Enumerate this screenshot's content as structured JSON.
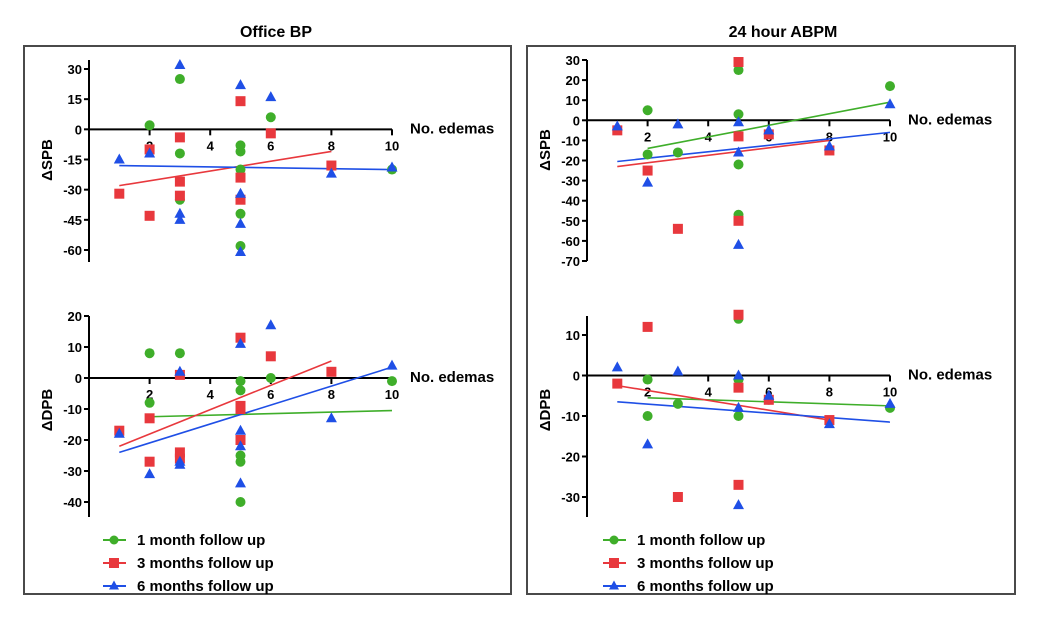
{
  "colors": {
    "green": "#3fae2a",
    "red": "#e8383d",
    "blue": "#1f4fe6",
    "axis": "#000000",
    "frame": "#4a4a4a"
  },
  "legend": [
    {
      "label": "1 month follow up",
      "series": "green",
      "marker": "circle"
    },
    {
      "label": "3 months follow up",
      "series": "red",
      "marker": "square"
    },
    {
      "label": "6 months follow up",
      "series": "blue",
      "marker": "triangle"
    }
  ],
  "panels": [
    {
      "title": "Office BP"
    },
    {
      "title": "24 hour ABPM"
    }
  ],
  "chart_data": [
    {
      "type": "scatter",
      "panel": "Office BP",
      "title": "Office BP",
      "xlabel": "No. edemas",
      "ylabel": "ΔSPB",
      "xlim": [
        0,
        10
      ],
      "ylim": [
        -65,
        35
      ],
      "xticks": [
        2,
        4,
        6,
        8,
        10
      ],
      "yticks": [
        30,
        15,
        0,
        -15,
        -30,
        -45,
        -60
      ],
      "grid": false,
      "legend_position": "none",
      "series": [
        {
          "name": "1 month follow up",
          "color_key": "green",
          "marker": "circle",
          "points": [
            [
              2,
              2
            ],
            [
              3,
              25
            ],
            [
              3,
              -12
            ],
            [
              3,
              -35
            ],
            [
              5,
              -8
            ],
            [
              5,
              -11
            ],
            [
              5,
              -20
            ],
            [
              5,
              -42
            ],
            [
              5,
              -58
            ],
            [
              6,
              6
            ],
            [
              10,
              -20
            ]
          ],
          "fit": null
        },
        {
          "name": "3 months follow up",
          "color_key": "red",
          "marker": "square",
          "points": [
            [
              1,
              -32
            ],
            [
              2,
              -10
            ],
            [
              2,
              -43
            ],
            [
              3,
              -4
            ],
            [
              3,
              -26
            ],
            [
              3,
              -33
            ],
            [
              5,
              14
            ],
            [
              5,
              -24
            ],
            [
              5,
              -35
            ],
            [
              6,
              -2
            ],
            [
              8,
              -18
            ]
          ],
          "fit": [
            [
              1,
              -28
            ],
            [
              8,
              -11
            ]
          ]
        },
        {
          "name": "6 months follow up",
          "color_key": "blue",
          "marker": "triangle",
          "points": [
            [
              1,
              -15
            ],
            [
              2,
              -12
            ],
            [
              3,
              32
            ],
            [
              3,
              -42
            ],
            [
              3,
              -45
            ],
            [
              5,
              22
            ],
            [
              5,
              -32
            ],
            [
              5,
              -47
            ],
            [
              5,
              -61
            ],
            [
              6,
              16
            ],
            [
              8,
              -22
            ],
            [
              10,
              -19
            ]
          ],
          "fit": [
            [
              1,
              -18
            ],
            [
              10,
              -20
            ]
          ]
        }
      ]
    },
    {
      "type": "scatter",
      "panel": "Office BP",
      "title": "",
      "xlabel": "No. edemas",
      "ylabel": "ΔDPB",
      "xlim": [
        0,
        10
      ],
      "ylim": [
        -45,
        20
      ],
      "xticks": [
        2,
        4,
        6,
        8,
        10
      ],
      "yticks": [
        20,
        10,
        0,
        -10,
        -20,
        -30,
        -40
      ],
      "grid": false,
      "legend_position": "bottom",
      "series": [
        {
          "name": "1 month follow up",
          "color_key": "green",
          "marker": "circle",
          "points": [
            [
              2,
              8
            ],
            [
              2,
              -8
            ],
            [
              3,
              8
            ],
            [
              5,
              -1
            ],
            [
              5,
              -4
            ],
            [
              5,
              -25
            ],
            [
              5,
              -27
            ],
            [
              5,
              -40
            ],
            [
              6,
              0
            ],
            [
              10,
              -1
            ]
          ],
          "fit": [
            [
              2,
              -12.5
            ],
            [
              10,
              -10.5
            ]
          ]
        },
        {
          "name": "3 months follow up",
          "color_key": "red",
          "marker": "square",
          "points": [
            [
              1,
              -17
            ],
            [
              2,
              -13
            ],
            [
              2,
              -27
            ],
            [
              3,
              1
            ],
            [
              3,
              -24
            ],
            [
              3,
              -26
            ],
            [
              5,
              13
            ],
            [
              5,
              -9
            ],
            [
              5,
              -10
            ],
            [
              5,
              -20
            ],
            [
              6,
              7
            ],
            [
              8,
              2
            ]
          ],
          "fit": [
            [
              1,
              -22
            ],
            [
              8,
              5.5
            ]
          ]
        },
        {
          "name": "6 months follow up",
          "color_key": "blue",
          "marker": "triangle",
          "points": [
            [
              1,
              -18
            ],
            [
              2,
              -31
            ],
            [
              3,
              2
            ],
            [
              3,
              -27
            ],
            [
              3,
              -28
            ],
            [
              5,
              11
            ],
            [
              5,
              -17
            ],
            [
              5,
              -22
            ],
            [
              5,
              -34
            ],
            [
              6,
              17
            ],
            [
              8,
              -13
            ],
            [
              10,
              4
            ]
          ],
          "fit": [
            [
              1,
              -24
            ],
            [
              10,
              3.5
            ]
          ]
        }
      ]
    },
    {
      "type": "scatter",
      "panel": "24 hour ABPM",
      "title": "24 hour ABPM",
      "xlabel": "No. edemas",
      "ylabel": "ΔSPB",
      "xlim": [
        0,
        10
      ],
      "ylim": [
        -70,
        30
      ],
      "xticks": [
        2,
        4,
        6,
        8,
        10
      ],
      "yticks": [
        30,
        20,
        10,
        0,
        -10,
        -20,
        -30,
        -40,
        -50,
        -60,
        -70
      ],
      "grid": false,
      "legend_position": "none",
      "series": [
        {
          "name": "1 month follow up",
          "color_key": "green",
          "marker": "circle",
          "points": [
            [
              2,
              5
            ],
            [
              2,
              -17
            ],
            [
              3,
              -16
            ],
            [
              5,
              25
            ],
            [
              5,
              3
            ],
            [
              5,
              -22
            ],
            [
              5,
              -47
            ],
            [
              10,
              17
            ]
          ],
          "fit": [
            [
              2,
              -14
            ],
            [
              10,
              9
            ]
          ]
        },
        {
          "name": "3 months follow up",
          "color_key": "red",
          "marker": "square",
          "points": [
            [
              1,
              -5
            ],
            [
              2,
              -25
            ],
            [
              3,
              -54
            ],
            [
              5,
              29
            ],
            [
              5,
              -8
            ],
            [
              5,
              -50
            ],
            [
              6,
              -7
            ],
            [
              8,
              -15
            ]
          ],
          "fit": [
            [
              1,
              -23
            ],
            [
              8,
              -10
            ]
          ]
        },
        {
          "name": "6 months follow up",
          "color_key": "blue",
          "marker": "triangle",
          "points": [
            [
              1,
              -3
            ],
            [
              2,
              -31
            ],
            [
              3,
              -2
            ],
            [
              5,
              -1
            ],
            [
              5,
              -16
            ],
            [
              5,
              -62
            ],
            [
              6,
              -5
            ],
            [
              8,
              -13
            ],
            [
              10,
              8
            ]
          ],
          "fit": [
            [
              1,
              -20.5
            ],
            [
              10,
              -6
            ]
          ]
        }
      ]
    },
    {
      "type": "scatter",
      "panel": "24 hour ABPM",
      "title": "",
      "xlabel": "No. edemas",
      "ylabel": "ΔDPB",
      "xlim": [
        0,
        10
      ],
      "ylim": [
        -35,
        15
      ],
      "xticks": [
        2,
        4,
        6,
        8,
        10
      ],
      "yticks": [
        10,
        0,
        -10,
        -20,
        -30
      ],
      "grid": false,
      "legend_position": "bottom",
      "series": [
        {
          "name": "1 month follow up",
          "color_key": "green",
          "marker": "circle",
          "points": [
            [
              2,
              -1
            ],
            [
              2,
              -10
            ],
            [
              3,
              -7
            ],
            [
              5,
              14
            ],
            [
              5,
              -1
            ],
            [
              5,
              -10
            ],
            [
              6,
              -6
            ],
            [
              10,
              -8
            ]
          ],
          "fit": [
            [
              2,
              -5.5
            ],
            [
              10,
              -7.5
            ]
          ]
        },
        {
          "name": "3 months follow up",
          "color_key": "red",
          "marker": "square",
          "points": [
            [
              1,
              -2
            ],
            [
              2,
              12
            ],
            [
              3,
              -30
            ],
            [
              5,
              15
            ],
            [
              5,
              -3
            ],
            [
              5,
              -27
            ],
            [
              6,
              -6
            ],
            [
              8,
              -11
            ]
          ],
          "fit": [
            [
              1,
              -2.5
            ],
            [
              8,
              -11
            ]
          ]
        },
        {
          "name": "6 months follow up",
          "color_key": "blue",
          "marker": "triangle",
          "points": [
            [
              1,
              2
            ],
            [
              2,
              -17
            ],
            [
              3,
              1
            ],
            [
              5,
              0
            ],
            [
              5,
              -8
            ],
            [
              5,
              -32
            ],
            [
              6,
              -5
            ],
            [
              8,
              -12
            ],
            [
              10,
              -7
            ]
          ],
          "fit": [
            [
              1,
              -6.5
            ],
            [
              10,
              -11.5
            ]
          ]
        }
      ]
    }
  ]
}
